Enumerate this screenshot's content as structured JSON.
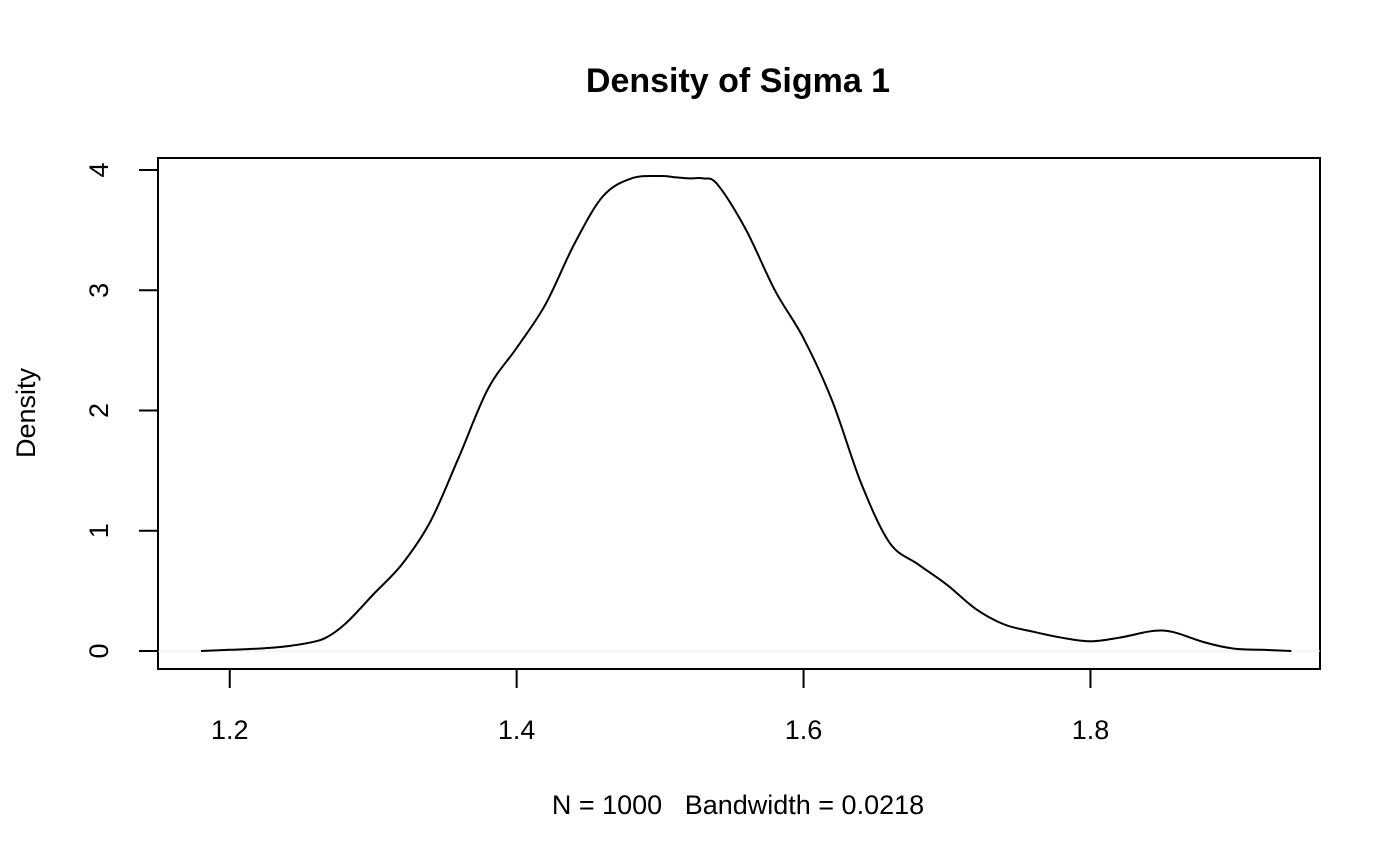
{
  "chart_data": {
    "type": "line",
    "title": "Density of Sigma 1",
    "xlabel": "N = 1000   Bandwidth = 0.0218",
    "ylabel": "Density",
    "xlim": [
      1.15,
      1.96
    ],
    "ylim": [
      -0.15,
      4.1
    ],
    "xticks": [
      1.2,
      1.4,
      1.6,
      1.8
    ],
    "xtick_labels": [
      "1.2",
      "1.4",
      "1.6",
      "1.8"
    ],
    "yticks": [
      0,
      1,
      2,
      3,
      4
    ],
    "ytick_labels": [
      "0",
      "1",
      "2",
      "3",
      "4"
    ],
    "grid": false,
    "series": [
      {
        "color": "#000000",
        "x": [
          1.18,
          1.2,
          1.22,
          1.24,
          1.26,
          1.27,
          1.28,
          1.29,
          1.3,
          1.32,
          1.34,
          1.36,
          1.38,
          1.4,
          1.42,
          1.44,
          1.46,
          1.48,
          1.5,
          1.51,
          1.52,
          1.53,
          1.54,
          1.56,
          1.58,
          1.6,
          1.62,
          1.64,
          1.66,
          1.68,
          1.7,
          1.72,
          1.74,
          1.76,
          1.78,
          1.8,
          1.82,
          1.84,
          1.85,
          1.86,
          1.88,
          1.9,
          1.92,
          1.94
        ],
        "y": [
          0.0,
          0.01,
          0.02,
          0.04,
          0.08,
          0.13,
          0.22,
          0.34,
          0.47,
          0.72,
          1.08,
          1.62,
          2.18,
          2.52,
          2.88,
          3.38,
          3.78,
          3.93,
          3.95,
          3.94,
          3.93,
          3.93,
          3.88,
          3.5,
          3.0,
          2.6,
          2.08,
          1.4,
          0.9,
          0.72,
          0.55,
          0.35,
          0.22,
          0.16,
          0.11,
          0.08,
          0.11,
          0.16,
          0.17,
          0.15,
          0.07,
          0.02,
          0.01,
          0.0
        ]
      }
    ]
  }
}
